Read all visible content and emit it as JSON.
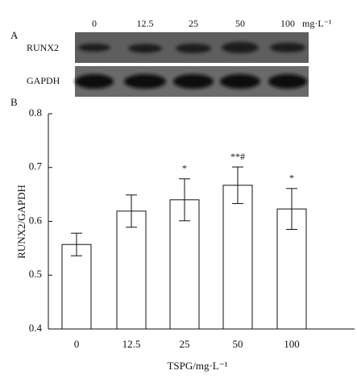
{
  "panels": {
    "a": "A",
    "b": "B"
  },
  "blot": {
    "unit": "mg·L⁻¹",
    "rows": [
      "RUNX2",
      "GAPDH"
    ]
  },
  "chart_data": {
    "type": "bar",
    "x_label": "TSPG/mg·L⁻¹",
    "y_label": "RUNX2/GAPDH",
    "categories": [
      "0",
      "12.5",
      "25",
      "50",
      "100"
    ],
    "values": [
      0.557,
      0.619,
      0.64,
      0.667,
      0.623
    ],
    "errors": [
      0.021,
      0.03,
      0.039,
      0.034,
      0.038
    ],
    "annotations": [
      null,
      null,
      "*",
      "**#",
      "*"
    ],
    "color": "#ffffff",
    "ylim": [
      0.4,
      0.8
    ],
    "yticks": [
      0.4,
      0.5,
      0.6,
      0.7,
      0.8
    ]
  }
}
